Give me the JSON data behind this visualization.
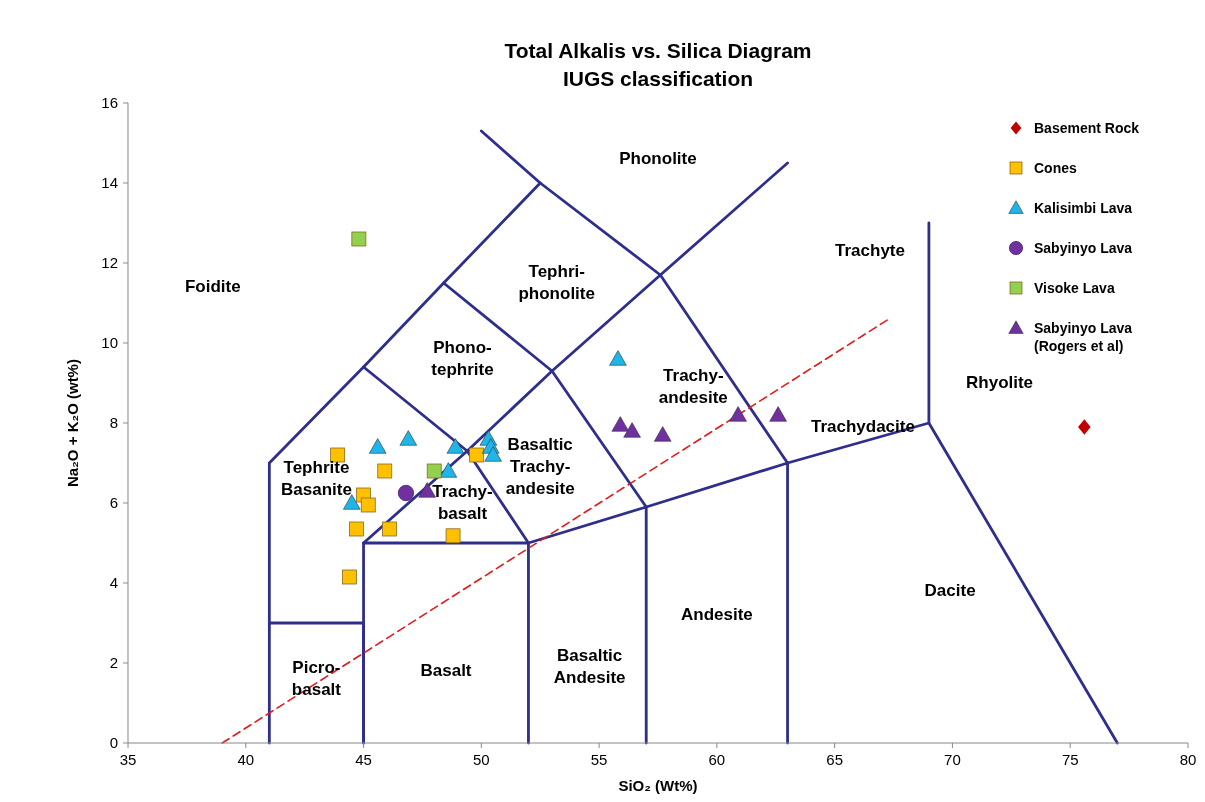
{
  "chart_data": {
    "type": "scatter",
    "title": "Total Alkalis vs. Silica Diagram",
    "subtitle": "IUGS classification",
    "xlabel": "SiO₂ (Wt%)",
    "ylabel": "Na₂O + K₂O (wt%)",
    "xlim": [
      35,
      80
    ],
    "ylim": [
      0,
      16
    ],
    "xticks": [
      35,
      40,
      45,
      50,
      55,
      60,
      65,
      70,
      75,
      80
    ],
    "yticks": [
      0,
      2,
      4,
      6,
      8,
      10,
      12,
      14,
      16
    ],
    "legend": "top right",
    "series": [
      {
        "type": "line",
        "color": "#2e2e8c",
        "line_style": "solid",
        "x": [
          41,
          41,
          45,
          45
        ],
        "values": [
          0,
          3,
          3,
          0
        ]
      },
      {
        "type": "line",
        "color": "#2e2e8c",
        "line_style": "solid",
        "x": [
          45,
          45,
          52,
          52
        ],
        "values": [
          0,
          5,
          5,
          0
        ]
      },
      {
        "type": "line",
        "color": "#2e2e8c",
        "line_style": "solid",
        "x": [
          52,
          57,
          57
        ],
        "values": [
          5,
          5.9,
          0
        ]
      },
      {
        "type": "line",
        "color": "#2e2e8c",
        "line_style": "solid",
        "x": [
          57,
          63,
          63
        ],
        "values": [
          5.9,
          7,
          0
        ]
      },
      {
        "type": "line",
        "color": "#2e2e8c",
        "line_style": "solid",
        "x": [
          63,
          69,
          69
        ],
        "values": [
          7,
          8,
          13
        ]
      },
      {
        "type": "line",
        "color": "#2e2e8c",
        "line_style": "solid",
        "x": [
          69,
          77
        ],
        "values": [
          8,
          0
        ]
      },
      {
        "type": "line",
        "color": "#2e2e8c",
        "line_style": "solid",
        "x": [
          41,
          41,
          45,
          48.4,
          52.5,
          50
        ],
        "values": [
          3,
          7,
          9.4,
          11.5,
          14,
          15.3
        ]
      },
      {
        "type": "line",
        "color": "#2e2e8c",
        "line_style": "solid",
        "x": [
          45,
          49.4,
          52
        ],
        "values": [
          9.4,
          7.3,
          5
        ]
      },
      {
        "type": "line",
        "color": "#2e2e8c",
        "line_style": "solid",
        "x": [
          45,
          49.4,
          53,
          57.6,
          63
        ],
        "values": [
          5,
          7.3,
          9.3,
          11.7,
          14.5
        ]
      },
      {
        "type": "line",
        "color": "#2e2e8c",
        "line_style": "solid",
        "x": [
          48.4,
          53,
          57
        ],
        "values": [
          11.5,
          9.3,
          5.9
        ]
      },
      {
        "type": "line",
        "color": "#2e2e8c",
        "line_style": "solid",
        "x": [
          52.5,
          57.6,
          63
        ],
        "values": [
          14,
          11.7,
          7
        ]
      },
      {
        "type": "line",
        "color": "#e31a1c",
        "line_style": "dashed",
        "x": [
          39,
          67.3
        ],
        "values": [
          0,
          10.6
        ]
      },
      {
        "name": "Basement Rock",
        "color": "#c00000",
        "marker": "diamond",
        "x": [
          75.6
        ],
        "values": [
          7.9
        ]
      },
      {
        "name": "Cones",
        "color": "#ffc000",
        "marker": "square",
        "x": [
          43.9,
          45.9,
          45.0,
          45.2,
          44.7,
          46.1,
          48.8,
          44.4,
          49.8
        ],
        "values": [
          7.2,
          6.8,
          6.2,
          5.95,
          5.35,
          5.35,
          5.18,
          4.15,
          7.2
        ]
      },
      {
        "name": "Kalisimbi Lava",
        "color": "#1fb5e8",
        "marker": "triangle",
        "x": [
          45.6,
          46.9,
          44.5,
          48.9,
          48.6,
          50.3,
          50.4,
          50.5,
          55.8
        ],
        "values": [
          7.4,
          7.6,
          6.0,
          7.4,
          6.8,
          7.6,
          7.4,
          7.2,
          9.6
        ]
      },
      {
        "name": "Sabyinyo Lava",
        "color": "#7030a0",
        "marker": "circle",
        "x": [
          46.8
        ],
        "values": [
          6.25
        ]
      },
      {
        "name": "Visoke Lava",
        "color": "#92d050",
        "marker": "square",
        "x": [
          48.0,
          44.8
        ],
        "values": [
          6.8,
          12.6
        ]
      },
      {
        "name": "Sabyinyo Lava (Rogers et al)",
        "color": "#7030a0",
        "marker": "triangle",
        "x": [
          47.7,
          55.9,
          56.4,
          57.7,
          60.9,
          62.6
        ],
        "values": [
          6.3,
          7.95,
          7.8,
          7.7,
          8.2,
          8.2
        ]
      }
    ],
    "annotations": [
      "Foidite",
      "Phonolite",
      "Tephri-\nphonolite",
      "Phono-\ntephrite",
      "Trachyte",
      "Trachy-\nandesite",
      "Basaltic\nTrachy-\nandesite",
      "Tephrite\nBasanite",
      "Trachy-\nbasalt",
      "Rhyolite",
      "Trachydacite",
      "Dacite",
      "Andesite",
      "Basaltic\nAndesite",
      "Basalt",
      "Picro-\nbasalt"
    ]
  }
}
